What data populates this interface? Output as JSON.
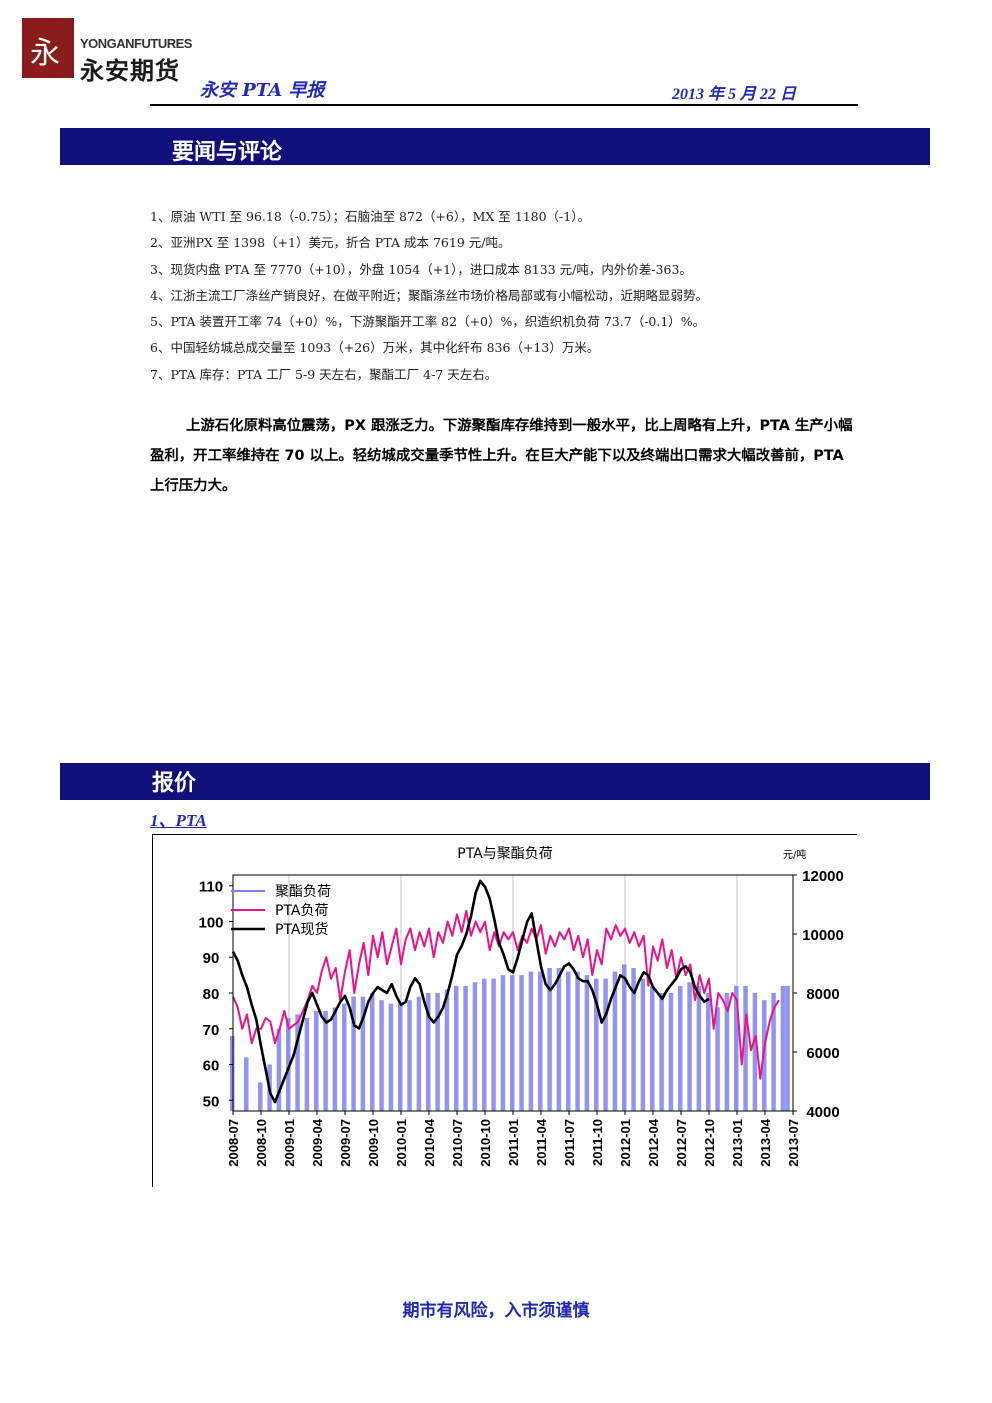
{
  "header": {
    "logo_mark": "永",
    "logo_en": "YONGANFUTURES",
    "logo_cn": "永安期货",
    "title": "永安 PTA 早报",
    "date": "2013 年 5 月 22 日"
  },
  "sections": {
    "news_title": "要闻与评论",
    "quote_title": "报价"
  },
  "news": [
    "1、原油 WTI 至 96.18（-0.75）；石脑油至 872（+6），MX 至 1180（-1）。",
    "2、亚洲PX 至 1398（+1）美元，折合 PTA 成本 7619 元/吨。",
    "3、现货内盘 PTA 至 7770（+10），外盘 1054（+1），进口成本 8133 元/吨，内外价差-363。",
    "4、江浙主流工厂涤丝产销良好，在做平附近；聚酯涤丝市场价格局部或有小幅松动，近期略显弱势。",
    "5、PTA 装置开工率 74（+0）%，下游聚酯开工率 82（+0）%，织造织机负荷 73.7（-0.1）%。",
    "6、中国轻纺城总成交量至 1093（+26）万米，其中化纤布 836（+13）万米。",
    "7、PTA 库存：PTA 工厂 5-9 天左右，聚酯工厂 4-7 天左右。"
  ],
  "commentary": "上游石化原料高位震荡，PX 跟涨乏力。下游聚酯库存维持到一般水平，比上周略有上升，PTA 生产小幅盈利，开工率维持在 70 以上。轻纺城成交量季节性上升。在巨大产能下以及终端出口需求大幅改善前，PTA 上行压力大。",
  "subsection": "1、PTA",
  "chart_data": {
    "type": "line",
    "title": "PTA与聚酯负荷",
    "y2_unit": "元/吨",
    "x_ticks": [
      "2008-07",
      "2008-10",
      "2009-01",
      "2009-04",
      "2009-07",
      "2009-10",
      "2010-01",
      "2010-04",
      "2010-07",
      "2010-10",
      "2011-01",
      "2011-04",
      "2011-07",
      "2011-10",
      "2012-01",
      "2012-04",
      "2012-07",
      "2012-10",
      "2013-01",
      "2013-04",
      "2013-07"
    ],
    "y_left": {
      "ticks": [
        50,
        60,
        70,
        80,
        90,
        100,
        110
      ],
      "range": [
        47,
        113
      ]
    },
    "y_right": {
      "ticks": [
        4000,
        6000,
        8000,
        10000,
        12000
      ],
      "range": [
        4000,
        12000
      ]
    },
    "legend": [
      "聚酯负荷",
      "PTA负荷",
      "PTA现货"
    ],
    "colors": {
      "polyester": "#8080f0",
      "pta_load": "#ee1188",
      "pta_spot": "#000000",
      "grid": "#c0c0c0"
    },
    "series": [
      {
        "name": "聚酯负荷",
        "axis": "left",
        "style": "bar",
        "points": [
          [
            0,
            68
          ],
          [
            1.5,
            62
          ],
          [
            3,
            55
          ],
          [
            4,
            60
          ],
          [
            5,
            70
          ],
          [
            6,
            73
          ],
          [
            7,
            74
          ],
          [
            8,
            73
          ],
          [
            9,
            75
          ],
          [
            10,
            75
          ],
          [
            11,
            76
          ],
          [
            12,
            77
          ],
          [
            13,
            79
          ],
          [
            14,
            79
          ],
          [
            15,
            80
          ],
          [
            16,
            78
          ],
          [
            17,
            77
          ],
          [
            18,
            77
          ],
          [
            19,
            78
          ],
          [
            20,
            79
          ],
          [
            21,
            80
          ],
          [
            22,
            80
          ],
          [
            23,
            81
          ],
          [
            24,
            82
          ],
          [
            25,
            82
          ],
          [
            26,
            83
          ],
          [
            27,
            84
          ],
          [
            28,
            84
          ],
          [
            29,
            85
          ],
          [
            30,
            85
          ],
          [
            31,
            85
          ],
          [
            32,
            86
          ],
          [
            33,
            86
          ],
          [
            34,
            87
          ],
          [
            35,
            87
          ],
          [
            36,
            86
          ],
          [
            37,
            86
          ],
          [
            38,
            85
          ],
          [
            39,
            84
          ],
          [
            40,
            84
          ],
          [
            41,
            86
          ],
          [
            42,
            88
          ],
          [
            43,
            87
          ],
          [
            44,
            84
          ],
          [
            45,
            82
          ],
          [
            46,
            80
          ],
          [
            47,
            80
          ],
          [
            48,
            82
          ],
          [
            49,
            83
          ],
          [
            50,
            82
          ],
          [
            51,
            80
          ],
          [
            52,
            76
          ],
          [
            53,
            80
          ],
          [
            54,
            82
          ],
          [
            55,
            82
          ],
          [
            56,
            80
          ],
          [
            57,
            78
          ],
          [
            58,
            80
          ],
          [
            59,
            82
          ],
          [
            59.5,
            82
          ]
        ]
      },
      {
        "name": "PTA负荷",
        "axis": "left",
        "points": [
          [
            0,
            79
          ],
          [
            0.5,
            76
          ],
          [
            1,
            70
          ],
          [
            1.5,
            74
          ],
          [
            2,
            66
          ],
          [
            2.5,
            70
          ],
          [
            3,
            70
          ],
          [
            3.5,
            73
          ],
          [
            4,
            72
          ],
          [
            4.5,
            66
          ],
          [
            5,
            70
          ],
          [
            5.5,
            75
          ],
          [
            6,
            70
          ],
          [
            6.5,
            71
          ],
          [
            7,
            72
          ],
          [
            7.5,
            75
          ],
          [
            8,
            78
          ],
          [
            8.5,
            82
          ],
          [
            9,
            80
          ],
          [
            9.5,
            86
          ],
          [
            10,
            90
          ],
          [
            10.5,
            84
          ],
          [
            11,
            87
          ],
          [
            11.5,
            78
          ],
          [
            12,
            86
          ],
          [
            12.5,
            92
          ],
          [
            13,
            80
          ],
          [
            13.5,
            88
          ],
          [
            14,
            94
          ],
          [
            14.5,
            85
          ],
          [
            15,
            96
          ],
          [
            15.5,
            90
          ],
          [
            16,
            97
          ],
          [
            16.5,
            88
          ],
          [
            17,
            93
          ],
          [
            17.5,
            98
          ],
          [
            18,
            88
          ],
          [
            18.5,
            95
          ],
          [
            19,
            98
          ],
          [
            19.5,
            92
          ],
          [
            20,
            97
          ],
          [
            20.5,
            93
          ],
          [
            21,
            98
          ],
          [
            21.5,
            90
          ],
          [
            22,
            97
          ],
          [
            22.5,
            94
          ],
          [
            23,
            100
          ],
          [
            23.5,
            96
          ],
          [
            24,
            102
          ],
          [
            24.5,
            97
          ],
          [
            25,
            103
          ],
          [
            25.5,
            96
          ],
          [
            26,
            100
          ],
          [
            26.5,
            97
          ],
          [
            27,
            100
          ],
          [
            27.5,
            92
          ],
          [
            28,
            97
          ],
          [
            28.5,
            93
          ],
          [
            29,
            97
          ],
          [
            29.5,
            95
          ],
          [
            30,
            97
          ],
          [
            30.5,
            92
          ],
          [
            31,
            96
          ],
          [
            31.5,
            94
          ],
          [
            32,
            98
          ],
          [
            32.5,
            95
          ],
          [
            33,
            99
          ],
          [
            33.5,
            91
          ],
          [
            34,
            96
          ],
          [
            34.5,
            93
          ],
          [
            35,
            97
          ],
          [
            35.5,
            95
          ],
          [
            36,
            98
          ],
          [
            36.5,
            92
          ],
          [
            37,
            96
          ],
          [
            37.5,
            90
          ],
          [
            38,
            95
          ],
          [
            38.5,
            85
          ],
          [
            39,
            92
          ],
          [
            39.5,
            88
          ],
          [
            40,
            98
          ],
          [
            40.5,
            95
          ],
          [
            41,
            99
          ],
          [
            41.5,
            96
          ],
          [
            42,
            98
          ],
          [
            42.5,
            94
          ],
          [
            43,
            97
          ],
          [
            43.5,
            93
          ],
          [
            44,
            96
          ],
          [
            44.5,
            82
          ],
          [
            45,
            93
          ],
          [
            45.5,
            89
          ],
          [
            46,
            95
          ],
          [
            46.5,
            87
          ],
          [
            47,
            92
          ],
          [
            47.5,
            84
          ],
          [
            48,
            90
          ],
          [
            48.5,
            85
          ],
          [
            49,
            88
          ],
          [
            49.5,
            78
          ],
          [
            50,
            85
          ],
          [
            50.5,
            80
          ],
          [
            51,
            84
          ],
          [
            51.5,
            70
          ],
          [
            52,
            80
          ],
          [
            52.5,
            78
          ],
          [
            53,
            75
          ],
          [
            53.5,
            80
          ],
          [
            54,
            78
          ],
          [
            54.5,
            60
          ],
          [
            55,
            74
          ],
          [
            55.5,
            64
          ],
          [
            56,
            68
          ],
          [
            56.5,
            56
          ],
          [
            57,
            66
          ],
          [
            57.5,
            72
          ],
          [
            58,
            76
          ],
          [
            58.5,
            78
          ]
        ]
      },
      {
        "name": "PTA现货",
        "axis": "right",
        "points": [
          [
            0,
            9400
          ],
          [
            0.5,
            9100
          ],
          [
            1,
            8600
          ],
          [
            1.5,
            8200
          ],
          [
            2,
            7600
          ],
          [
            2.5,
            7100
          ],
          [
            3,
            6200
          ],
          [
            3.5,
            5400
          ],
          [
            4,
            4600
          ],
          [
            4.5,
            4300
          ],
          [
            5,
            4700
          ],
          [
            5.5,
            5100
          ],
          [
            6,
            5500
          ],
          [
            6.5,
            5900
          ],
          [
            7,
            6500
          ],
          [
            7.5,
            7100
          ],
          [
            8,
            7700
          ],
          [
            8.5,
            8000
          ],
          [
            9,
            7600
          ],
          [
            9.5,
            7200
          ],
          [
            10,
            7000
          ],
          [
            10.5,
            7100
          ],
          [
            11,
            7400
          ],
          [
            11.5,
            7700
          ],
          [
            12,
            7900
          ],
          [
            12.5,
            7500
          ],
          [
            13,
            6900
          ],
          [
            13.5,
            6800
          ],
          [
            14,
            7200
          ],
          [
            14.5,
            7700
          ],
          [
            15,
            8000
          ],
          [
            15.5,
            8200
          ],
          [
            16,
            8100
          ],
          [
            16.5,
            8000
          ],
          [
            17,
            8300
          ],
          [
            17.5,
            7900
          ],
          [
            18,
            7600
          ],
          [
            18.5,
            7700
          ],
          [
            19,
            8200
          ],
          [
            19.5,
            8500
          ],
          [
            20,
            8300
          ],
          [
            20.5,
            7700
          ],
          [
            21,
            7200
          ],
          [
            21.5,
            7000
          ],
          [
            22,
            7200
          ],
          [
            22.5,
            7500
          ],
          [
            23,
            8000
          ],
          [
            23.5,
            8600
          ],
          [
            24,
            9300
          ],
          [
            24.5,
            9600
          ],
          [
            25,
            10000
          ],
          [
            25.5,
            10600
          ],
          [
            26,
            11400
          ],
          [
            26.5,
            11800
          ],
          [
            27,
            11600
          ],
          [
            27.5,
            11200
          ],
          [
            28,
            10500
          ],
          [
            28.5,
            9700
          ],
          [
            29,
            9300
          ],
          [
            29.5,
            8800
          ],
          [
            30,
            8700
          ],
          [
            30.5,
            9200
          ],
          [
            31,
            9800
          ],
          [
            31.5,
            10400
          ],
          [
            32,
            10700
          ],
          [
            32.5,
            9800
          ],
          [
            33,
            8900
          ],
          [
            33.5,
            8300
          ],
          [
            34,
            8100
          ],
          [
            34.5,
            8300
          ],
          [
            35,
            8600
          ],
          [
            35.5,
            8900
          ],
          [
            36,
            9000
          ],
          [
            36.5,
            8800
          ],
          [
            37,
            8500
          ],
          [
            37.5,
            8400
          ],
          [
            38,
            8400
          ],
          [
            38.5,
            8100
          ],
          [
            39,
            7600
          ],
          [
            39.5,
            7000
          ],
          [
            40,
            7300
          ],
          [
            40.5,
            7800
          ],
          [
            41,
            8200
          ],
          [
            41.5,
            8600
          ],
          [
            42,
            8500
          ],
          [
            42.5,
            8200
          ],
          [
            43,
            8000
          ],
          [
            43.5,
            8400
          ],
          [
            44,
            8700
          ],
          [
            44.5,
            8600
          ],
          [
            45,
            8200
          ],
          [
            45.5,
            8000
          ],
          [
            46,
            7800
          ],
          [
            46.5,
            8100
          ],
          [
            47,
            8300
          ],
          [
            47.5,
            8500
          ],
          [
            48,
            8800
          ],
          [
            48.5,
            8900
          ],
          [
            49,
            8700
          ],
          [
            49.5,
            8200
          ],
          [
            50,
            7900
          ],
          [
            50.5,
            7700
          ],
          [
            51,
            7800
          ]
        ]
      }
    ]
  },
  "footer": "期市有风险，入市须谨慎"
}
